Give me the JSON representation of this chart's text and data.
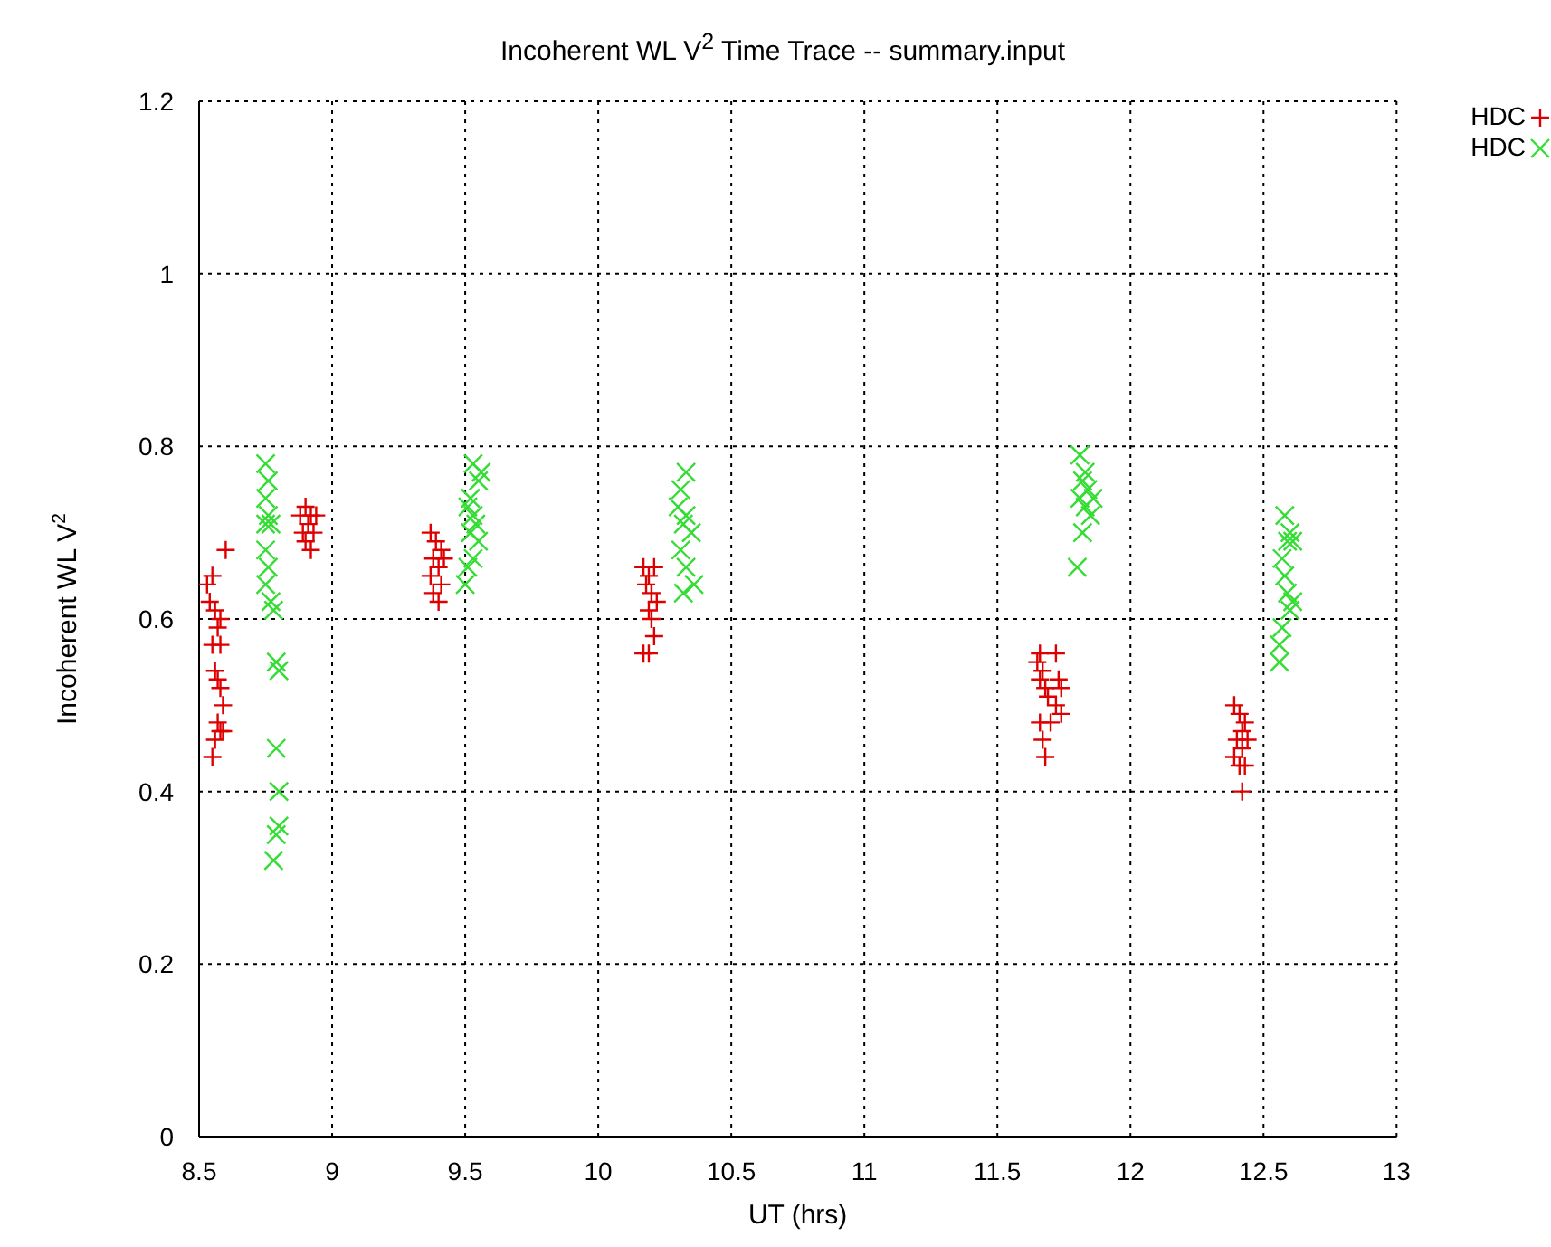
{
  "chart_data": {
    "type": "scatter",
    "title": "Incoherent WL V$^{2}$ Time Trace -- summary.input",
    "xlabel": "UT (hrs)",
    "ylabel": "Incoherent WL V$^{2}$",
    "xlim": [
      8.5,
      13
    ],
    "xticks": [
      8.5,
      9,
      9.5,
      10,
      10.5,
      11,
      11.5,
      12,
      12.5,
      13
    ],
    "ylim": [
      0,
      1.2
    ],
    "yticks": [
      0,
      0.2,
      0.4,
      0.6,
      0.8,
      1,
      1.2
    ],
    "grid": true,
    "legend": "top right",
    "series": [
      {
        "name": "HDC",
        "color": "#dd0000",
        "marker": "cross",
        "x": [
          8.53,
          8.55,
          8.54,
          8.56,
          8.58,
          8.6,
          8.57,
          8.55,
          8.58,
          8.56,
          8.57,
          8.58,
          8.59,
          8.57,
          8.58,
          8.56,
          8.59,
          8.55,
          8.88,
          8.9,
          8.92,
          8.94,
          8.91,
          8.89,
          8.93,
          8.9,
          8.92,
          9.37,
          9.39,
          9.41,
          9.38,
          9.42,
          9.4,
          9.37,
          9.41,
          9.38,
          9.4,
          10.17,
          10.19,
          10.21,
          10.18,
          10.2,
          10.22,
          10.19,
          10.2,
          10.21,
          10.17,
          10.19,
          11.66,
          11.72,
          11.65,
          11.67,
          11.66,
          11.68,
          11.73,
          11.74,
          11.69,
          11.72,
          11.74,
          11.66,
          11.7,
          11.67,
          11.68,
          12.39,
          12.41,
          12.43,
          12.42,
          12.44,
          12.4,
          12.42,
          12.39,
          12.41,
          12.43,
          12.42
        ],
        "values": [
          0.64,
          0.65,
          0.62,
          0.61,
          0.6,
          0.68,
          0.59,
          0.57,
          0.57,
          0.54,
          0.53,
          0.52,
          0.5,
          0.48,
          0.47,
          0.46,
          0.47,
          0.44,
          0.72,
          0.73,
          0.72,
          0.72,
          0.71,
          0.7,
          0.7,
          0.69,
          0.68,
          0.7,
          0.69,
          0.68,
          0.67,
          0.67,
          0.66,
          0.65,
          0.64,
          0.63,
          0.62,
          0.66,
          0.65,
          0.66,
          0.64,
          0.63,
          0.62,
          0.61,
          0.6,
          0.58,
          0.56,
          0.56,
          0.56,
          0.56,
          0.55,
          0.54,
          0.53,
          0.52,
          0.53,
          0.52,
          0.51,
          0.5,
          0.49,
          0.48,
          0.48,
          0.46,
          0.44,
          0.5,
          0.49,
          0.48,
          0.47,
          0.46,
          0.46,
          0.45,
          0.44,
          0.43,
          0.43,
          0.4
        ]
      },
      {
        "name": "HDC",
        "color": "#33dd33",
        "marker": "x",
        "x": [
          8.75,
          8.76,
          8.75,
          8.76,
          8.75,
          8.77,
          8.75,
          8.76,
          8.75,
          8.77,
          8.78,
          8.79,
          8.8,
          8.79,
          8.8,
          8.8,
          8.79,
          8.78,
          9.53,
          9.56,
          9.55,
          9.52,
          9.51,
          9.53,
          9.54,
          9.52,
          9.55,
          9.53,
          9.51,
          9.5,
          10.33,
          10.31,
          10.3,
          10.33,
          10.32,
          10.35,
          10.31,
          10.33,
          10.36,
          10.32,
          11.81,
          11.83,
          11.82,
          11.84,
          11.81,
          11.86,
          11.83,
          11.85,
          11.82,
          11.8,
          12.58,
          12.6,
          12.59,
          12.61,
          12.57,
          12.58,
          12.59,
          12.61,
          12.6,
          12.57,
          12.56,
          12.56
        ],
        "values": [
          0.78,
          0.76,
          0.74,
          0.72,
          0.71,
          0.71,
          0.68,
          0.66,
          0.64,
          0.62,
          0.61,
          0.55,
          0.54,
          0.45,
          0.4,
          0.36,
          0.35,
          0.32,
          0.78,
          0.77,
          0.76,
          0.74,
          0.73,
          0.72,
          0.71,
          0.7,
          0.69,
          0.67,
          0.66,
          0.64,
          0.77,
          0.75,
          0.73,
          0.72,
          0.71,
          0.7,
          0.68,
          0.66,
          0.64,
          0.63,
          0.79,
          0.77,
          0.76,
          0.75,
          0.74,
          0.74,
          0.73,
          0.72,
          0.7,
          0.66,
          0.72,
          0.7,
          0.69,
          0.69,
          0.67,
          0.65,
          0.63,
          0.62,
          0.61,
          0.59,
          0.57,
          0.55
        ]
      }
    ]
  }
}
